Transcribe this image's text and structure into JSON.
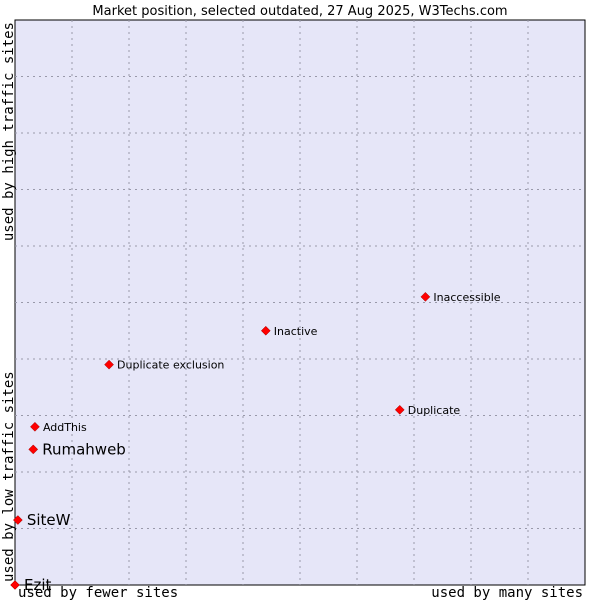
{
  "chart_data": {
    "type": "scatter",
    "title": "Market position, selected outdated, 27 Aug 2025, W3Techs.com",
    "xlabel_left": "used by fewer sites",
    "xlabel_right": "used by many sites",
    "ylabel_bottom": "used by low traffic sites",
    "ylabel_top": "used by high traffic sites",
    "xlim": [
      0,
      100
    ],
    "ylim": [
      0,
      100
    ],
    "grid": true,
    "points": [
      {
        "label": "Inaccessible",
        "x": 72,
        "y": 51,
        "emphasis": false
      },
      {
        "label": "Inactive",
        "x": 44,
        "y": 45,
        "emphasis": false
      },
      {
        "label": "Duplicate exclusion",
        "x": 16.5,
        "y": 39,
        "emphasis": false
      },
      {
        "label": "Duplicate",
        "x": 67.5,
        "y": 31,
        "emphasis": false
      },
      {
        "label": "AddThis",
        "x": 3.5,
        "y": 28,
        "emphasis": false
      },
      {
        "label": "Rumahweb",
        "x": 3.2,
        "y": 24,
        "emphasis": true
      },
      {
        "label": "SiteW",
        "x": 0.5,
        "y": 11.5,
        "emphasis": true
      },
      {
        "label": "Ezit",
        "x": 0,
        "y": 0,
        "emphasis": true
      }
    ]
  },
  "colors": {
    "plot_background": "#e6e6f8",
    "grid": "#9999aa",
    "marker": "#ff0000"
  }
}
